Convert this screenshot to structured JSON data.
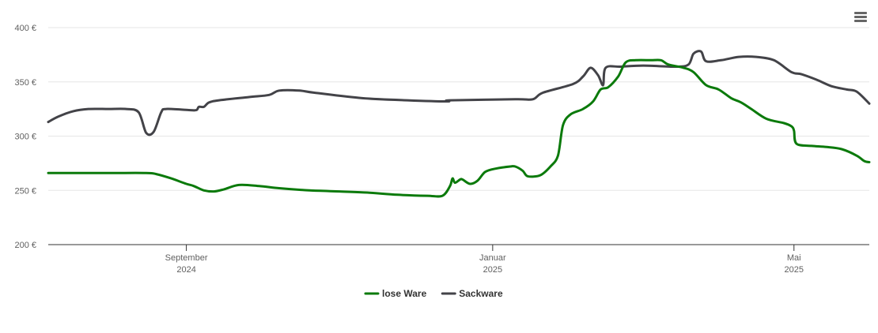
{
  "chart_data": {
    "type": "line",
    "title": "",
    "xlabel": "",
    "ylabel": "",
    "ylim": [
      200,
      400
    ],
    "y_ticks": [
      200,
      250,
      300,
      350,
      400
    ],
    "y_tick_labels": [
      "200 €",
      "250 €",
      "300 €",
      "350 €",
      "400 €"
    ],
    "x_range": [
      "2024-07-08",
      "2025-05-31"
    ],
    "x_ticks": [
      {
        "date": "2024-09-01",
        "month": "September",
        "year": "2024"
      },
      {
        "date": "2025-01-01",
        "month": "Januar",
        "year": "2025"
      },
      {
        "date": "2025-05-01",
        "month": "Mai",
        "year": "2025"
      }
    ],
    "grid": true,
    "legend_position": "bottom-center",
    "series": [
      {
        "name": "lose Ware",
        "color": "#0b7a0b",
        "points": [
          [
            "2024-07-08",
            266
          ],
          [
            "2024-08-01",
            266
          ],
          [
            "2024-08-16",
            266
          ],
          [
            "2024-08-20",
            265
          ],
          [
            "2024-08-26",
            261
          ],
          [
            "2024-09-01",
            256
          ],
          [
            "2024-09-04",
            254
          ],
          [
            "2024-09-08",
            250
          ],
          [
            "2024-09-12",
            249
          ],
          [
            "2024-09-16",
            251
          ],
          [
            "2024-09-22",
            255
          ],
          [
            "2024-09-30",
            254
          ],
          [
            "2024-10-08",
            252
          ],
          [
            "2024-10-20",
            250
          ],
          [
            "2024-11-01",
            249
          ],
          [
            "2024-11-12",
            248
          ],
          [
            "2024-11-24",
            246
          ],
          [
            "2024-12-06",
            245
          ],
          [
            "2024-12-12",
            245
          ],
          [
            "2024-12-15",
            254
          ],
          [
            "2024-12-16",
            261
          ],
          [
            "2024-12-17",
            257
          ],
          [
            "2024-12-19",
            260
          ],
          [
            "2024-12-20",
            260
          ],
          [
            "2024-12-23",
            256
          ],
          [
            "2024-12-26",
            259
          ],
          [
            "2024-12-29",
            267
          ],
          [
            "2025-01-02",
            270
          ],
          [
            "2025-01-08",
            272
          ],
          [
            "2025-01-10",
            272
          ],
          [
            "2025-01-13",
            268
          ],
          [
            "2025-01-15",
            263
          ],
          [
            "2025-01-20",
            264
          ],
          [
            "2025-01-24",
            272
          ],
          [
            "2025-01-27",
            282
          ],
          [
            "2025-01-29",
            310
          ],
          [
            "2025-02-01",
            320
          ],
          [
            "2025-02-06",
            325
          ],
          [
            "2025-02-10",
            332
          ],
          [
            "2025-02-13",
            343
          ],
          [
            "2025-02-16",
            345
          ],
          [
            "2025-02-20",
            355
          ],
          [
            "2025-02-23",
            368
          ],
          [
            "2025-02-27",
            370
          ],
          [
            "2025-03-05",
            370
          ],
          [
            "2025-03-09",
            370
          ],
          [
            "2025-03-12",
            366
          ],
          [
            "2025-03-18",
            363
          ],
          [
            "2025-03-22",
            359
          ],
          [
            "2025-03-27",
            347
          ],
          [
            "2025-04-01",
            343
          ],
          [
            "2025-04-06",
            335
          ],
          [
            "2025-04-10",
            331
          ],
          [
            "2025-04-14",
            325
          ],
          [
            "2025-04-20",
            316
          ],
          [
            "2025-04-27",
            312
          ],
          [
            "2025-04-30",
            309
          ],
          [
            "2025-05-01",
            305
          ],
          [
            "2025-05-02",
            293
          ],
          [
            "2025-05-08",
            291
          ],
          [
            "2025-05-14",
            290
          ],
          [
            "2025-05-20",
            288
          ],
          [
            "2025-05-26",
            282
          ],
          [
            "2025-05-29",
            277
          ],
          [
            "2025-05-31",
            276
          ]
        ]
      },
      {
        "name": "Sackware",
        "color": "#434348",
        "points": [
          [
            "2024-07-08",
            313
          ],
          [
            "2024-07-12",
            318
          ],
          [
            "2024-07-18",
            323
          ],
          [
            "2024-07-24",
            325
          ],
          [
            "2024-08-01",
            325
          ],
          [
            "2024-08-08",
            325
          ],
          [
            "2024-08-13",
            322
          ],
          [
            "2024-08-16",
            303
          ],
          [
            "2024-08-19",
            304
          ],
          [
            "2024-08-22",
            322
          ],
          [
            "2024-08-24",
            325
          ],
          [
            "2024-09-02",
            324
          ],
          [
            "2024-09-05",
            324
          ],
          [
            "2024-09-06",
            327
          ],
          [
            "2024-09-08",
            327
          ],
          [
            "2024-09-10",
            331
          ],
          [
            "2024-09-14",
            333
          ],
          [
            "2024-09-26",
            336
          ],
          [
            "2024-10-04",
            338
          ],
          [
            "2024-10-08",
            342
          ],
          [
            "2024-10-16",
            342
          ],
          [
            "2024-10-22",
            340
          ],
          [
            "2024-11-10",
            335
          ],
          [
            "2024-11-28",
            333
          ],
          [
            "2024-12-14",
            332
          ],
          [
            "2024-12-15",
            333
          ],
          [
            "2025-01-10",
            334
          ],
          [
            "2025-01-17",
            334
          ],
          [
            "2025-01-21",
            340
          ],
          [
            "2025-02-02",
            348
          ],
          [
            "2025-02-06",
            355
          ],
          [
            "2025-02-09",
            363
          ],
          [
            "2025-02-12",
            356
          ],
          [
            "2025-02-14",
            347
          ],
          [
            "2025-02-15",
            363
          ],
          [
            "2025-02-21",
            364
          ],
          [
            "2025-03-02",
            365
          ],
          [
            "2025-03-15",
            364
          ],
          [
            "2025-03-20",
            366
          ],
          [
            "2025-03-22",
            376
          ],
          [
            "2025-03-25",
            378
          ],
          [
            "2025-03-27",
            369
          ],
          [
            "2025-04-02",
            370
          ],
          [
            "2025-04-09",
            373
          ],
          [
            "2025-04-16",
            373
          ],
          [
            "2025-04-23",
            370
          ],
          [
            "2025-04-30",
            359
          ],
          [
            "2025-05-04",
            357
          ],
          [
            "2025-05-10",
            352
          ],
          [
            "2025-05-16",
            346
          ],
          [
            "2025-05-22",
            343
          ],
          [
            "2025-05-26",
            341
          ],
          [
            "2025-05-31",
            330
          ]
        ]
      }
    ]
  }
}
